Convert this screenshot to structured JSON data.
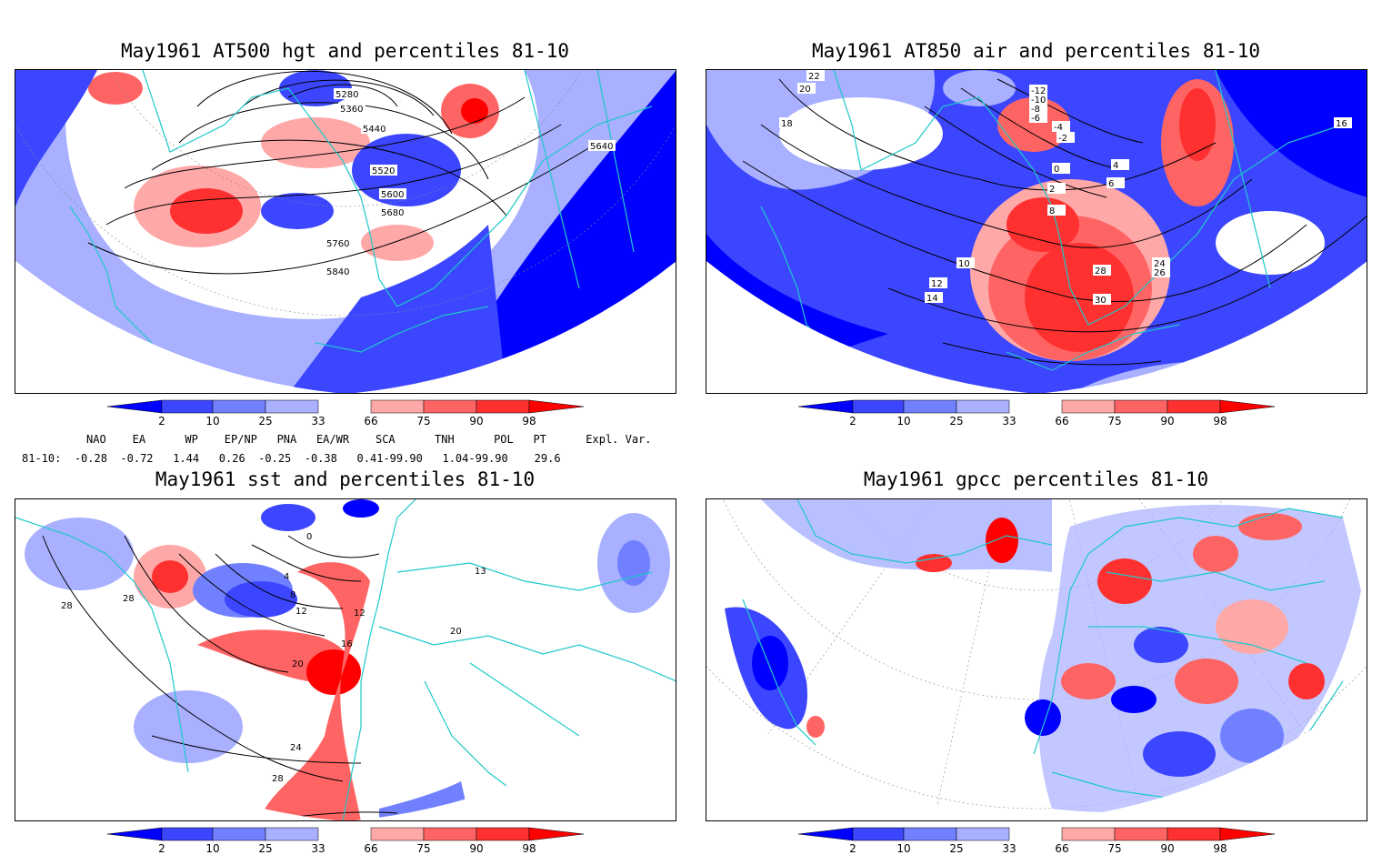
{
  "panels": [
    {
      "id": "p1",
      "title": "May1961 AT500 hgt and percentiles 81-10",
      "contour_labels": [
        "5280",
        "5360",
        "5440",
        "5520",
        "5600",
        "5680",
        "5760",
        "5840",
        "5640"
      ]
    },
    {
      "id": "p2",
      "title": "May1961 AT850 air and percentiles 81-10",
      "contour_labels": [
        "22",
        "20",
        "18",
        "16",
        "14",
        "12",
        "10",
        "8",
        "6",
        "4",
        "2",
        "0",
        "-2",
        "-4",
        "-6",
        "-8",
        "-10",
        "-12",
        "24",
        "26",
        "28",
        "30"
      ]
    },
    {
      "id": "p3",
      "title": "May1961 sst and percentiles 81-10",
      "contour_labels": [
        "0",
        "4",
        "8",
        "12",
        "16",
        "20",
        "24",
        "28",
        "13"
      ]
    },
    {
      "id": "p4",
      "title": "May1961 gpcc percentiles 81-10",
      "contour_labels": []
    }
  ],
  "colorbar": {
    "ticks": [
      "2",
      "10",
      "25",
      "33",
      "66",
      "75",
      "90",
      "98"
    ],
    "colors": {
      "deep_blue": "#0000ff",
      "blue2": "#3c46ff",
      "blue3": "#7080ff",
      "light_blue": "#a8b0ff",
      "light_red": "#ffa8a8",
      "red3": "#ff6464",
      "red2": "#ff3030",
      "deep_red": "#ff0000"
    }
  },
  "indices": {
    "header": [
      "NAO",
      "EA",
      "WP",
      "EP/NP",
      "PNA",
      "EA/WR",
      "SCA",
      "TNH",
      "POL",
      "PT",
      "Expl. Var."
    ],
    "row_label": "81-10:",
    "values": [
      "-0.28",
      "-0.72",
      "1.44",
      "0.26",
      "-0.25",
      "-0.38",
      "0.41-99.90",
      "1.04-99.90",
      "29.6"
    ]
  },
  "map_colors": {
    "coast": "#1fc8c8",
    "contour": "#000000",
    "grid": "#888888"
  }
}
